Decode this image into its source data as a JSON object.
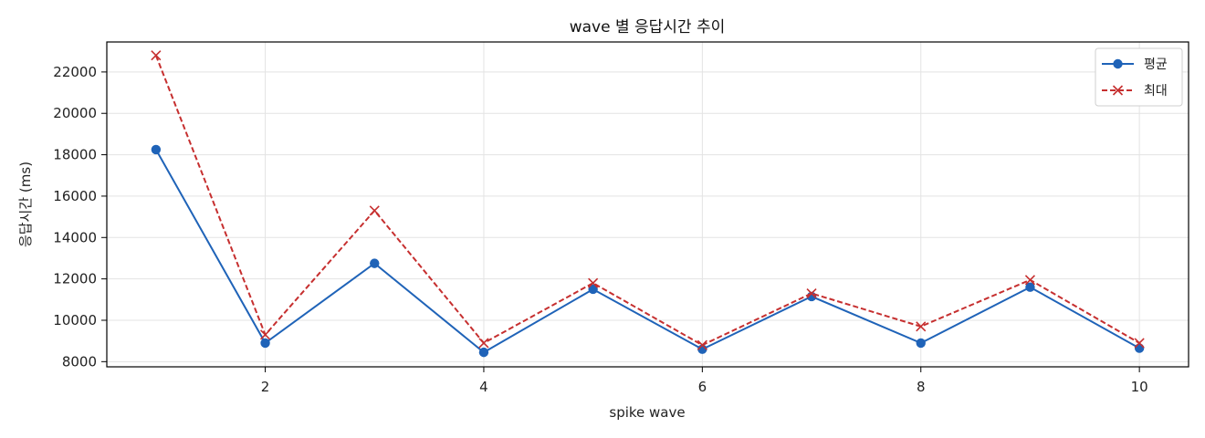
{
  "chart_data": {
    "type": "line",
    "title": "wave 별 응답시간 추이",
    "xlabel": "spike wave",
    "ylabel": "응답시간 (ms)",
    "x": [
      1,
      2,
      3,
      4,
      5,
      6,
      7,
      8,
      9,
      10
    ],
    "xlim": [
      0.55,
      10.45
    ],
    "ylim": [
      7750,
      23450
    ],
    "x_ticks": [
      2,
      4,
      6,
      8,
      10
    ],
    "y_ticks": [
      8000,
      10000,
      12000,
      14000,
      16000,
      18000,
      20000,
      22000
    ],
    "grid": true,
    "legend_position": "top-right",
    "series": [
      {
        "name": "평균",
        "color": "#1f63b8",
        "line_style": "solid",
        "marker": "circle",
        "values": [
          18250,
          8900,
          12750,
          8450,
          11500,
          8600,
          11150,
          8900,
          11600,
          8650
        ]
      },
      {
        "name": "최대",
        "color": "#c62f2f",
        "line_style": "dashed",
        "marker": "x",
        "values": [
          22800,
          9300,
          15300,
          8900,
          11800,
          8800,
          11300,
          9700,
          11950,
          8900
        ]
      }
    ]
  }
}
